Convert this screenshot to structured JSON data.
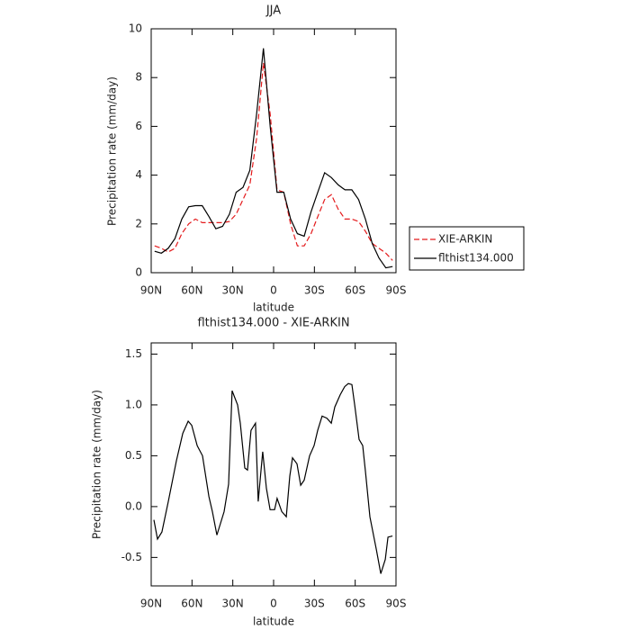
{
  "chart_data": [
    {
      "type": "line",
      "title": "JJA",
      "xlabel": "latitude",
      "ylabel": "Precipitation rate (mm/day)",
      "x": [
        87.5,
        82.5,
        77.5,
        72.5,
        67.5,
        62.5,
        57.5,
        52.5,
        47.5,
        42.5,
        37.5,
        32.5,
        27.5,
        22.5,
        17.5,
        12.5,
        7.5,
        2.5,
        -2.5,
        -7.5,
        -12.5,
        -17.5,
        -22.5,
        -27.5,
        -32.5,
        -37.5,
        -42.5,
        -47.5,
        -52.5,
        -57.5,
        -62.5,
        -67.5,
        -72.5,
        -77.5,
        -82.5,
        -87.5
      ],
      "series": [
        {
          "name": "XIE-ARKIN",
          "color": "#e41a1c",
          "line_style": "dashed",
          "values": [
            1.1,
            1.0,
            0.85,
            1.0,
            1.6,
            2.0,
            2.2,
            2.05,
            2.05,
            2.05,
            2.05,
            2.1,
            2.4,
            3.0,
            3.6,
            5.5,
            8.6,
            6.5,
            3.4,
            3.3,
            2.0,
            1.1,
            1.1,
            1.6,
            2.3,
            3.0,
            3.2,
            2.6,
            2.2,
            2.2,
            2.1,
            1.7,
            1.2,
            1.0,
            0.8,
            0.5
          ]
        },
        {
          "name": "flthist134.000",
          "color": "#000000",
          "line_style": "solid",
          "values": [
            0.88,
            0.8,
            1.0,
            1.4,
            2.2,
            2.7,
            2.75,
            2.75,
            2.3,
            1.8,
            1.9,
            2.4,
            3.3,
            3.5,
            4.2,
            6.5,
            9.2,
            6.0,
            3.3,
            3.3,
            2.2,
            1.6,
            1.5,
            2.5,
            3.3,
            4.1,
            3.9,
            3.6,
            3.4,
            3.4,
            3.0,
            2.2,
            1.2,
            0.6,
            0.2,
            0.25
          ]
        }
      ],
      "xlim": [
        90,
        -90
      ],
      "xticks": [
        {
          "value": 90,
          "label": "90N"
        },
        {
          "value": 60,
          "label": "60N"
        },
        {
          "value": 30,
          "label": "30N"
        },
        0,
        {
          "value": -30,
          "label": "30S"
        },
        {
          "value": -60,
          "label": "60S"
        },
        {
          "value": -90,
          "label": "90S"
        }
      ],
      "ylim": [
        0,
        10
      ],
      "yticks": [
        0,
        2,
        4,
        6,
        8,
        10
      ],
      "legend": "right"
    },
    {
      "type": "line",
      "title": "flthist134.000 - XIE-ARKIN",
      "xlabel": "latitude",
      "ylabel": "Precipitation rate (mm/day)",
      "x": [
        88,
        85.4,
        82.1,
        77.4,
        71.5,
        66.8,
        62.8,
        60.2,
        56.2,
        52.3,
        47.6,
        45,
        41.7,
        36.4,
        33.1,
        30.5,
        26.5,
        24.5,
        21.2,
        19.2,
        16.6,
        13.3,
        11.3,
        8,
        5.3,
        2.6,
        -0.7,
        -2.6,
        -6,
        -9.3,
        -11.9,
        -13.9,
        -17.2,
        -19.9,
        -22.5,
        -26.5,
        -29.8,
        -32.4,
        -35.7,
        -39.1,
        -42.4,
        -45,
        -49,
        -52.3,
        -54.9,
        -57.6,
        -59.6,
        -62.9,
        -65.5,
        -67.5,
        -70.8,
        -75.5,
        -78.8,
        -82.1,
        -84.1,
        -87.4
      ],
      "values": [
        -0.13,
        -0.32,
        -0.25,
        0.05,
        0.45,
        0.72,
        0.84,
        0.8,
        0.6,
        0.5,
        0.1,
        -0.05,
        -0.28,
        -0.05,
        0.22,
        1.14,
        1.0,
        0.82,
        0.38,
        0.36,
        0.75,
        0.82,
        0.05,
        0.54,
        0.18,
        -0.03,
        -0.03,
        0.08,
        -0.05,
        -0.1,
        0.3,
        0.48,
        0.42,
        0.21,
        0.26,
        0.5,
        0.6,
        0.75,
        0.89,
        0.87,
        0.82,
        0.98,
        1.1,
        1.18,
        1.21,
        1.2,
        1.0,
        0.66,
        0.6,
        0.35,
        -0.1,
        -0.42,
        -0.66,
        -0.52,
        -0.3,
        -0.29
      ],
      "color": "#000000",
      "xlim": [
        90,
        -90
      ],
      "xticks": [
        {
          "value": 90,
          "label": "90N"
        },
        {
          "value": 60,
          "label": "60N"
        },
        {
          "value": 30,
          "label": "30N"
        },
        0,
        {
          "value": -30,
          "label": "30S"
        },
        {
          "value": -60,
          "label": "60S"
        },
        {
          "value": -90,
          "label": "90S"
        }
      ],
      "ylim": [
        -0.78,
        1.61
      ],
      "yticks": [
        -0.5,
        {
          "value": 0,
          "label": "0.0"
        },
        0.5,
        {
          "value": 1,
          "label": "1.0"
        },
        1.5
      ]
    }
  ]
}
